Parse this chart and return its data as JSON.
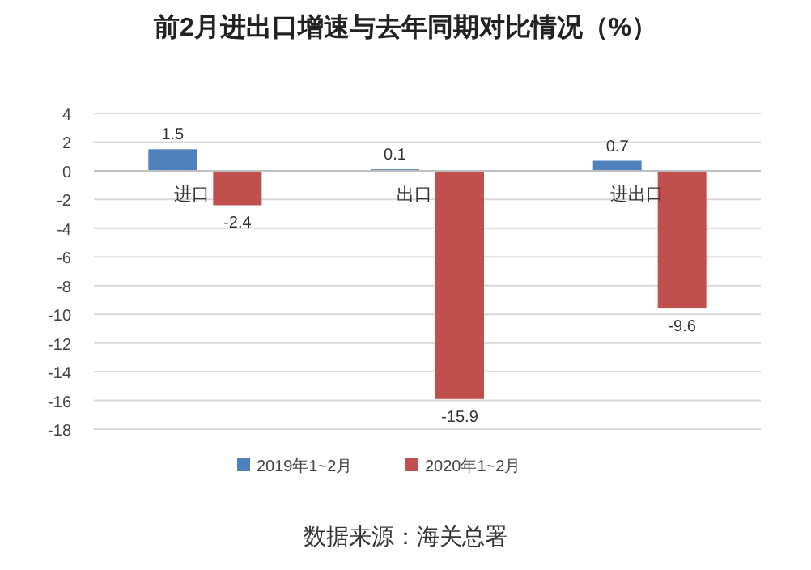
{
  "chart_data": {
    "type": "bar",
    "title": "前2月进出口增速与去年同期对比情况（%）",
    "categories": [
      "进口",
      "出口",
      "进出口"
    ],
    "series": [
      {
        "name": "2019年1~2月",
        "color": "#4f81bd",
        "values": [
          1.5,
          0.1,
          0.7
        ]
      },
      {
        "name": "2020年1~2月",
        "color": "#c0504d",
        "values": [
          -2.4,
          -15.9,
          -9.6
        ]
      }
    ],
    "ylim": [
      -18,
      4
    ],
    "yticks": [
      -18,
      -16,
      -14,
      -12,
      -10,
      -8,
      -6,
      -4,
      -2,
      0,
      2,
      4
    ],
    "grid": "y",
    "legend": "bottom",
    "data_labels": true,
    "annotations": [
      "数据来源：海关总署"
    ]
  }
}
